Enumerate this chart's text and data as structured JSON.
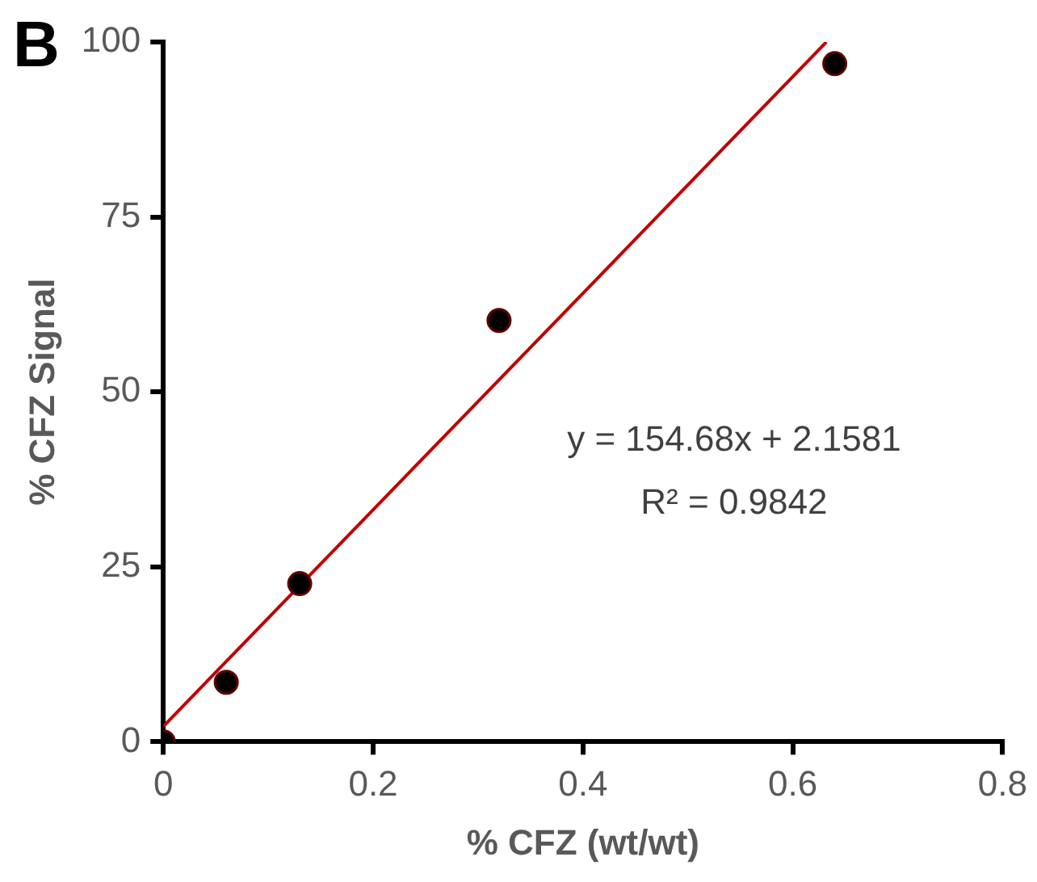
{
  "chart_data": {
    "type": "scatter",
    "xlabel": "% CFZ (wt/wt)",
    "ylabel": "% CFZ Signal",
    "annotations": [
      "B",
      "y = 154.68x + 2.1581",
      "R² = 0.9842"
    ],
    "x": [
      0,
      0.06,
      0.13,
      0.32,
      0.64
    ],
    "series": [
      {
        "marker": "circle",
        "color": "#000000",
        "values": [
          0,
          8.5,
          22.6,
          60.2,
          96.9
        ]
      },
      {
        "type": "line",
        "color": "#c00000",
        "x": [
          0,
          0.632
        ],
        "values": [
          2.2,
          100
        ]
      }
    ],
    "xlim": [
      0,
      0.8
    ],
    "xticks": [
      0,
      0.2,
      0.4,
      0.6,
      0.8
    ],
    "ylim": [
      0,
      100
    ],
    "yticks": [
      0,
      25,
      50,
      75,
      100
    ],
    "grid": false,
    "legend": false
  }
}
